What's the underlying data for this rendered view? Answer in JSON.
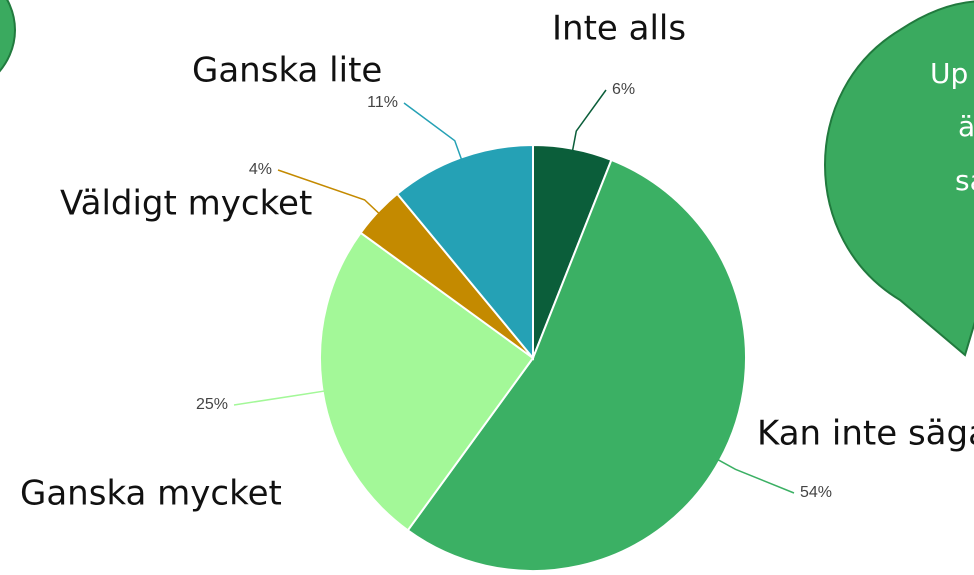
{
  "chart_data": {
    "type": "pie",
    "categories": [
      "Inte alls",
      "Ganska lite",
      "Ganska mycket",
      "Väldigt mycket",
      "Kan inte säga"
    ],
    "values": [
      6,
      54,
      25,
      4,
      11
    ],
    "value_labels": [
      "6%",
      "54%",
      "25%",
      "4%",
      "11%"
    ],
    "colors": [
      "#0b5e3a",
      "#3bb064",
      "#a3f898",
      "#c48a00",
      "#25a1b5"
    ]
  },
  "callout": {
    "lines": [
      "Up",
      "ä",
      "sa"
    ]
  }
}
